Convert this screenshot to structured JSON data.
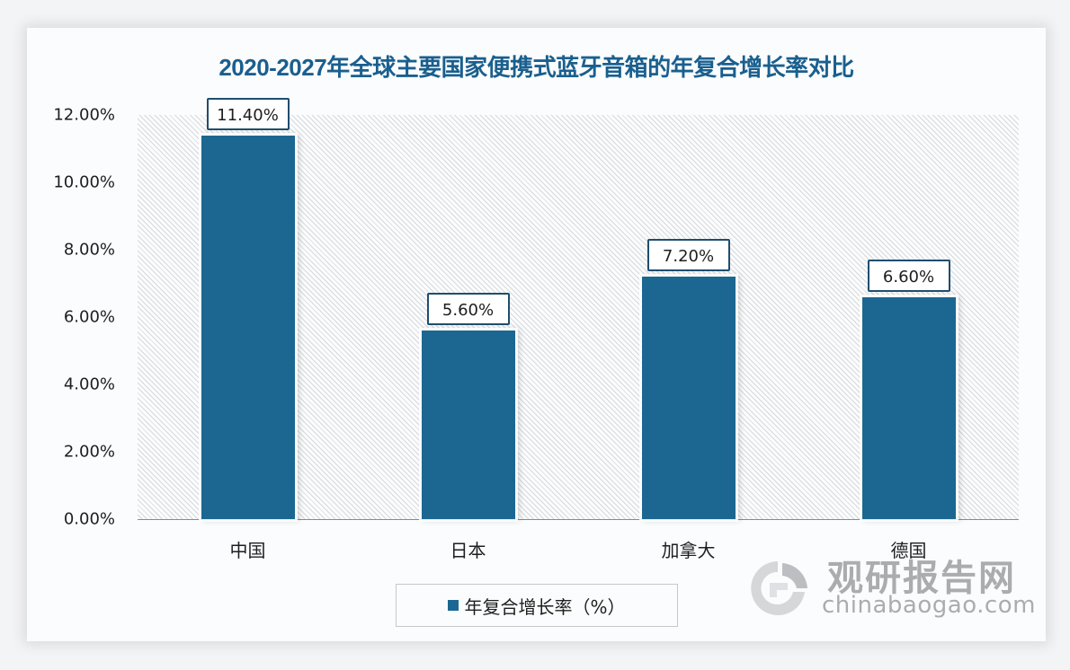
{
  "title": "2020-2027年全球主要国家便携式蓝牙音箱的年复合增长率对比",
  "chart_data": {
    "type": "bar",
    "title": "2020-2027年全球主要国家便携式蓝牙音箱的年复合增长率对比",
    "categories": [
      "中国",
      "日本",
      "加拿大",
      "德国"
    ],
    "series": [
      {
        "name": "年复合增长率（%）",
        "values": [
          11.4,
          5.6,
          7.2,
          6.6
        ],
        "color": "#1b6792"
      }
    ],
    "value_labels": [
      "11.40%",
      "5.60%",
      "7.20%",
      "6.60%"
    ],
    "xlabel": "",
    "ylabel": "",
    "ylim": [
      0,
      12
    ],
    "yticks": [
      "0.00%",
      "2.00%",
      "4.00%",
      "6.00%",
      "8.00%",
      "10.00%",
      "12.00%"
    ],
    "grid": false,
    "legend_position": "bottom"
  },
  "legend": {
    "label": "年复合增长率（%）"
  },
  "watermark": {
    "cn": "观研报告网",
    "en": "chinabaogao.com"
  },
  "colors": {
    "bar": "#1b6792",
    "title": "#1a5f8e"
  }
}
